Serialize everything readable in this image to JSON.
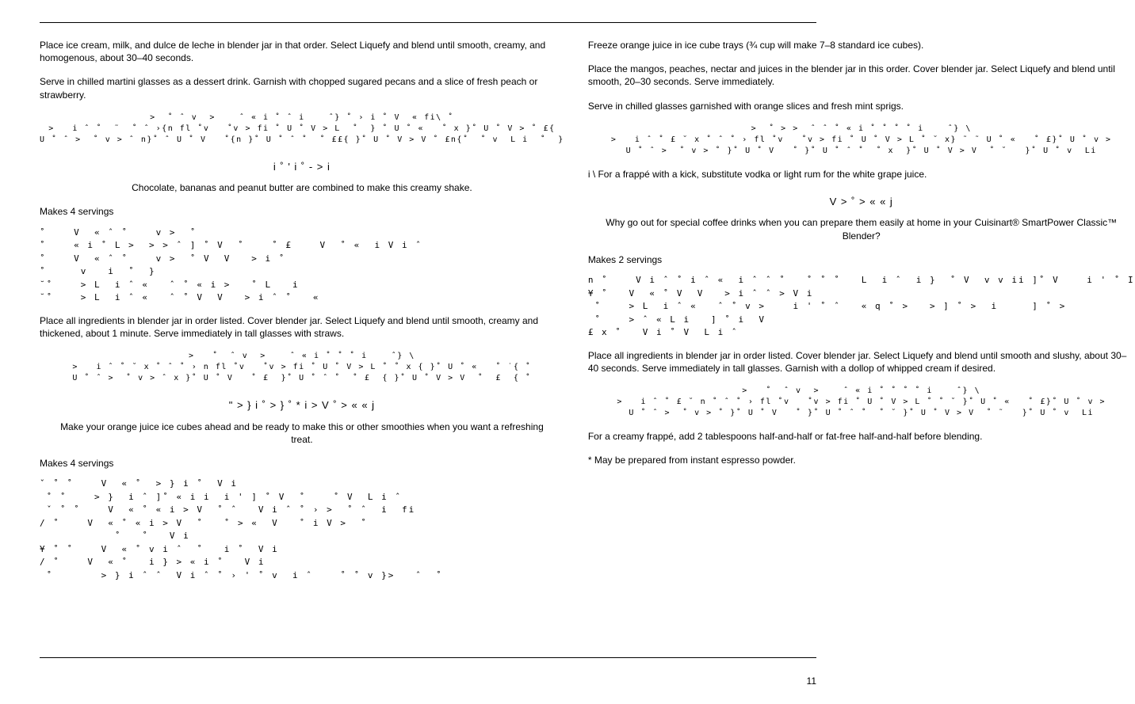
{
  "page_number": "11",
  "left_column": {
    "p1": "Place ice cream, milk, and dulce de leche in blender jar in that order. Select Liquefy and blend until smooth, creamy, and homogenous, about 30–40 seconds.",
    "p2": "Serve in chilled martini glasses as a dessert drink. Garnish with chopped sugared pecans and a slice of fresh peach or strawberry.",
    "garbled1": ">  ˚ ˆ v  >    ˆ « i ˚ ˆ i    ˆ} ˚ › i ˚ V  « fi\\ ˚\n>   i ˆ ˚  ˜  ˚ ˆ ›{n fl ˚v   ˚v > fi ˚ U ˚ V > L  ˚  } ˚ U ˚ «   ˚ x }˚ U ˚ V > ˚ £{\nU ˚ ˆ >  ˚ v > ˆ n}˚ ˆ U ˚ V   ˚{n }˚ U ˚ ˆ ˚  ˚ ££{ }˚ U ˚ V > V ˚ £n{˚  ˚ v  L i  ˚  }",
    "recipe1_title": "i  ˚    '   i ˚ -  >  i",
    "recipe1_intro": "Chocolate, bananas and peanut butter are combined to make this creamy shake.",
    "recipe1_makes": "Makes 4 servings",
    "recipe1_ingredients": "˚    V  « ˆ ˚    v >  ˚\n˚    « i ˚ L >  > > ˆ ] ˚ V  ˚    ˚ £    V  ˚ «  i V i ˆ\n˚    V  « ˆ ˚    v >  ˚ V  V   > i ˚\n˚     v   i  ˚  }\n˘˚    > L  i ˆ «   ˆ ˚ « i >   ˚ L   i\n˘˚    > L  i ˆ «   ˆ ˚ V  V   > i ˆ ˚   «",
    "recipe1_instructions": "Place all ingredients in blender jar in order listed. Cover blender jar. Select Liquefy and blend until smooth, creamy and thickened, about 1 minute. Serve immediately in tall glasses with straws.",
    "garbled2": ">   ˚  ˆ v  >    ˆ « i ˚ ˚ ˚ i    ˆ} \\\n>   i ˆ ˚ ˘ x ˚ ˆ ˚ › n fl ˚v   ˚v > fi ˚ U ˚ V > L ˚ ˚ x { }˚ U ˚ «   ˚ ˙{ ˚\nU ˚ ˆ >  ˚ v > ˆ x }˚ U ˚ V   ˚ £  }˚ U ˚ ˆ ˚  ˚ £  { }˚ U ˚ V > V  ˚  £  { ˚",
    "recipe2_title": "\"  >  } i ˚  >  }  ˚ * i > V  ˚  > « « j",
    "recipe2_intro": "Make your orange juice ice cubes ahead and be ready to make this or other smoothies when you want a refreshing treat.",
    "recipe2_makes": "Makes 4 servings",
    "recipe2_ingredients": "ˇ ˚ ˚    V  « ˚  > } i ˚  V i\n ˚ ˚    > }  i ˆ ]˚ « i i  i ' ] ˚ V  ˚    ˚ V  L i ˆ\n ˇ ˚ ˚    V  « ˚ « i > V  ˚ ˆ   V i ˆ ˚ › >  ˚ ˆ  i  fi\n/ ˚    V  « ˚ « i > V  ˚   ˚ > «  V   ˚ i V >  ˚\n           ˚   ˚   V i\n¥ ˚ ˚    V  « ˚ v i ˆ  ˚   i ˚  V i\n/ ˚    V  « ˚   i } > « i ˚   V i\n ˚       > } i ˆ ˆ  V i ˆ ˚ › ' ˚ v  i ˆ    ˚ ˚ v }>   ˆ  ˚"
  },
  "right_column": {
    "p1": "Freeze orange juice in ice cube trays (¾ cup will make 7–8 standard ice cubes).",
    "p2": "Place the mangos, peaches, nectar and juices in the blender jar in this order. Cover blender jar. Select Liquefy and blend until smooth, 20–30 seconds. Serve immediately.",
    "p3": "Serve in chilled glasses garnished with orange slices and fresh mint sprigs.",
    "garbled1": ">  ˚ > >  ˆ ˆ ˚ « i ˚ ˚ ˚ ˚ i    ˆ} \\\n>   i ˆ ˚ £ ˘ x ˚ ˆ ˚ › fl ˚v   ˚v > fi ˚ U ˚ V > L ˚ ˘ x} ˜ ˜ U ˚ «   ˚ £}˚ U ˚ v >\nU ˚ ˆ >  ˚ v > ˚ }˚ U ˚ V   ˚ }˚ U ˚ ˆ ˚  ˚ x  }˚ U ˚ V > V  ˚ ˘   }˚ U ˚ v  Li",
    "tip1": "i \\ For a frappé with a kick, substitute vodka or light rum for the white grape juice.",
    "recipe3_title": "V  > ˚   > « « j",
    "recipe3_intro": "Why go out for special coffee drinks when you can prepare them easily at home in your Cuisinart® SmartPower Classic™ Blender?",
    "recipe3_makes": "Makes 2 servings",
    "recipe3_ingredients": "n ˚    V i ˆ ˚ i ˆ «  i ˆ ˆ ˚   ˚ ˚ ˚   L  i ˆ  i }  ˚ V  v v ii ]˚ V    i ' ˚ I\n¥ ˚   V  « ˚ V  V   > i ˆ ˆ > V i\n ˚    > L  i ˆ «   ˆ ˚ v >    i ' ˚ ˆ   « q ˚ >   > ] ˚ >  i     ] ˚ >\n ˚    > ˆ « L i   ] ˚ i  V\n£ x ˚   V i ˚ V  L i ˆ",
    "recipe3_instructions": "Place all ingredients in blender jar in order listed. Cover blender jar. Select Liquefy and blend until smooth and slushy, about 30–40 seconds. Serve immediately in tall glasses. Garnish with a dollop of whipped cream if desired.",
    "garbled2": ">   ˚  ˆ v  >    ˆ « i ˚ ˚ ˚ ˚ i    ˆ} \\\n>   i ˆ ˚ £ ˘ n ˚ ˆ ˚ › fl ˚v   ˚v > fi ˚ U ˚ V > L ˚ ˚ ˘ }˚ U ˚ «   ˚ £}˚ U ˚ v >\nU ˚ ˆ >  ˚ v > ˚ }˚ U ˚ V   ˚ }˚ U ˚ ˆ ˚  ˚ ˘ }˚ U ˚ V > V  ˚ ˜   }˚ U ˚ v  Li",
    "tip2": "For a creamy frappé, add 2 tablespoons half-and-half or fat-free half-and-half before blending.",
    "footnote": "* May be prepared from instant espresso powder."
  }
}
